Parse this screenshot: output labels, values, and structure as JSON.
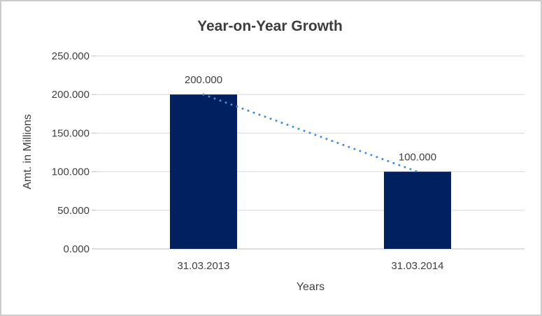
{
  "window": {
    "background": "#ffffff",
    "border_color": "#cccccc"
  },
  "chart_data": {
    "type": "bar",
    "title": "Year-on-Year Growth",
    "xlabel": "Years",
    "ylabel": "Amt. in Millions",
    "categories": [
      "31.03.2013",
      "31.03.2014"
    ],
    "series": [
      {
        "name": "Amt. in Millions",
        "values": [
          200,
          100
        ],
        "data_labels": [
          "200.000",
          "100.000"
        ]
      }
    ],
    "ylim": [
      0,
      250
    ],
    "yticks": [
      0,
      50,
      100,
      150,
      200,
      250
    ],
    "ytick_labels": [
      "0.000",
      "50.000",
      "100.000",
      "150.000",
      "200.000",
      "250.000"
    ],
    "grid": true,
    "legend": "none",
    "colors": {
      "bar": "#002060",
      "trendline": "#4c8bd2",
      "gridline": "#d9d9d9",
      "axis_line": "#bfbfbf",
      "text": "#404040",
      "title_text": "#3d3d3d"
    },
    "trendline": {
      "style": "dotted",
      "from_category": "31.03.2013",
      "to_category": "31.03.2014"
    }
  }
}
